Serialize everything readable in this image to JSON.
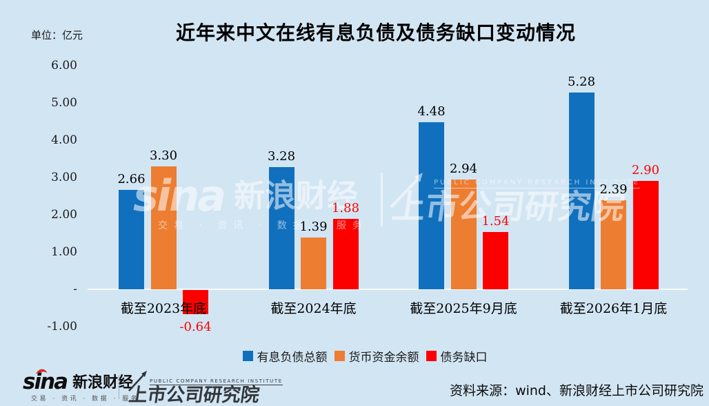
{
  "header": {
    "unit_label": "单位：亿元",
    "title": "近年来中文在线有息负债及债务缺口变动情况"
  },
  "chart_data": {
    "type": "bar",
    "title": "近年来中文在线有息负债及债务缺口变动情况",
    "unit": "亿元",
    "categories": [
      "截至2023年底",
      "截至2024年底",
      "截至2025年9月底",
      "截至2026年1月底"
    ],
    "series": [
      {
        "name": "有息负债总额",
        "color": "#1170BD",
        "label_color": "#000000",
        "values": [
          2.66,
          3.28,
          4.48,
          5.28
        ]
      },
      {
        "name": "货币资金余额",
        "color": "#ED7D31",
        "label_color": "#000000",
        "values": [
          3.3,
          1.39,
          2.94,
          2.39
        ]
      },
      {
        "name": "债务缺口",
        "color": "#FC0000",
        "label_color": "#FC0000",
        "values": [
          -0.64,
          1.88,
          1.54,
          2.9
        ]
      }
    ],
    "ylim": [
      -1,
      6
    ],
    "ytick_values": [
      6,
      5,
      4,
      3,
      2,
      1,
      0,
      -1
    ],
    "ytick_labels": [
      "6.00",
      "5.00",
      "4.00",
      "3.00",
      "2.00",
      "1.00",
      "-",
      "-1.00"
    ],
    "grid": false,
    "legend_position": "bottom"
  },
  "watermark": {
    "sina_script": "sina",
    "sina_name": "新浪财经",
    "tagline": "交易 · 资讯 · 数据 · 服务",
    "pcri_en": "PUBLIC COMPANY RESEARCH INSTITUTE",
    "pcri_name": "上市公司研究院"
  },
  "footer": {
    "sina_script": "sina",
    "sina_name": "新浪财经",
    "sina_tagline": "交易 · 资讯 · 数据 · 服务",
    "pcri_en": "PUBLIC COMPANY RESEARCH INSTITUTE",
    "pcri_name": "上市公司研究院",
    "source": "资料来源：wind、新浪财经上市公司研究院"
  },
  "colors": {
    "background": "#D2E5F3",
    "zero_line": "#FFFFFF",
    "blue": "#1170BD",
    "orange": "#ED7D31",
    "red": "#FC0000"
  }
}
